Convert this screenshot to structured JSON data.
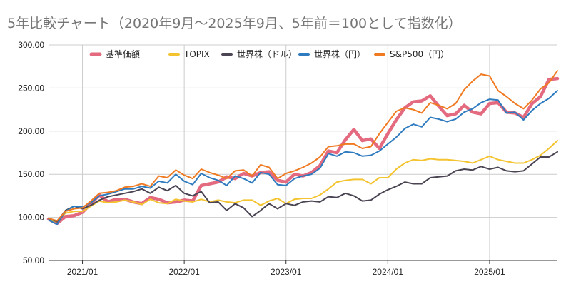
{
  "chart_data": {
    "type": "line",
    "title": "5年比較チャート（2020年9月〜2025年9月、5年前＝100として指数化）",
    "xlabel": "",
    "ylabel": "",
    "ylim": [
      50,
      300
    ],
    "yticks": [
      "50.00",
      "100.00",
      "150.00",
      "200.00",
      "250.00",
      "300.00"
    ],
    "xticks": [
      "2021/01",
      "2022/01",
      "2023/01",
      "2024/01",
      "2025/01"
    ],
    "x": [
      "2020/09",
      "2020/10",
      "2020/11",
      "2020/12",
      "2021/01",
      "2021/02",
      "2021/03",
      "2021/04",
      "2021/05",
      "2021/06",
      "2021/07",
      "2021/08",
      "2021/09",
      "2021/10",
      "2021/11",
      "2021/12",
      "2022/01",
      "2022/02",
      "2022/03",
      "2022/04",
      "2022/05",
      "2022/06",
      "2022/07",
      "2022/08",
      "2022/09",
      "2022/10",
      "2022/11",
      "2022/12",
      "2023/01",
      "2023/02",
      "2023/03",
      "2023/04",
      "2023/05",
      "2023/06",
      "2023/07",
      "2023/08",
      "2023/09",
      "2023/10",
      "2023/11",
      "2023/12",
      "2024/01",
      "2024/02",
      "2024/03",
      "2024/04",
      "2024/05",
      "2024/06",
      "2024/07",
      "2024/08",
      "2024/09",
      "2024/10",
      "2024/11",
      "2024/12",
      "2025/01",
      "2025/02",
      "2025/03",
      "2025/04",
      "2025/05",
      "2025/06",
      "2025/07",
      "2025/08",
      "2025/09"
    ],
    "grid": true,
    "legend_position": "top",
    "series": [
      {
        "name": "基準価額",
        "color": "#e36a7f",
        "width": 4.5,
        "values": [
          98,
          93,
          101,
          102,
          106,
          116,
          126,
          118,
          121,
          121,
          118,
          116,
          123,
          121,
          117,
          118,
          120,
          119,
          137,
          139,
          141,
          147,
          145,
          151,
          148,
          152,
          153,
          143,
          141,
          150,
          148,
          152,
          160,
          177,
          175,
          190,
          202,
          189,
          191,
          180,
          197,
          213,
          227,
          234,
          235,
          241,
          229,
          218,
          220,
          230,
          222,
          220,
          232,
          233,
          222,
          221,
          216,
          232,
          240,
          260,
          261
        ]
      },
      {
        "name": "TOPIX",
        "color": "#f4c430",
        "width": 2,
        "values": [
          97,
          95,
          105,
          107,
          107,
          113,
          119,
          117,
          118,
          120,
          118,
          115,
          121,
          117,
          116,
          121,
          119,
          118,
          121,
          118,
          120,
          118,
          117,
          120,
          120,
          114,
          119,
          122,
          116,
          121,
          122,
          122,
          126,
          133,
          141,
          143,
          144,
          144,
          139,
          146,
          146,
          156,
          163,
          167,
          166,
          168,
          167,
          167,
          166,
          165,
          163,
          167,
          171,
          167,
          165,
          163,
          163,
          167,
          172,
          180,
          189
        ]
      },
      {
        "name": "世界株（ドル）",
        "color": "#4a4453",
        "width": 2,
        "values": [
          99,
          95,
          108,
          113,
          110,
          114,
          120,
          124,
          126,
          128,
          130,
          133,
          128,
          135,
          131,
          137,
          128,
          125,
          130,
          117,
          118,
          108,
          116,
          111,
          101,
          108,
          116,
          110,
          116,
          114,
          118,
          119,
          118,
          124,
          123,
          128,
          125,
          119,
          120,
          127,
          132,
          136,
          141,
          139,
          139,
          146,
          147,
          148,
          154,
          156,
          155,
          159,
          156,
          158,
          154,
          153,
          154,
          162,
          170,
          170,
          176
        ]
      },
      {
        "name": "世界株（円）",
        "color": "#2f7bbf",
        "width": 2,
        "values": [
          97,
          92,
          107,
          113,
          112,
          117,
          125,
          127,
          130,
          133,
          133,
          136,
          134,
          142,
          140,
          150,
          142,
          138,
          151,
          146,
          143,
          137,
          148,
          145,
          140,
          152,
          150,
          138,
          137,
          145,
          148,
          150,
          157,
          174,
          171,
          176,
          175,
          171,
          172,
          177,
          185,
          193,
          203,
          208,
          205,
          216,
          214,
          211,
          214,
          222,
          226,
          233,
          237,
          236,
          221,
          222,
          213,
          224,
          232,
          238,
          247
        ]
      },
      {
        "name": "S&P500（円）",
        "color": "#f07a21",
        "width": 2,
        "values": [
          99,
          96,
          107,
          110,
          111,
          119,
          128,
          129,
          131,
          135,
          136,
          139,
          136,
          148,
          146,
          155,
          149,
          145,
          156,
          152,
          149,
          145,
          154,
          155,
          148,
          161,
          158,
          145,
          151,
          154,
          158,
          163,
          170,
          182,
          183,
          185,
          185,
          180,
          182,
          197,
          210,
          223,
          227,
          225,
          221,
          233,
          230,
          226,
          232,
          248,
          258,
          266,
          264,
          247,
          240,
          232,
          226,
          236,
          249,
          256,
          270
        ]
      }
    ]
  }
}
